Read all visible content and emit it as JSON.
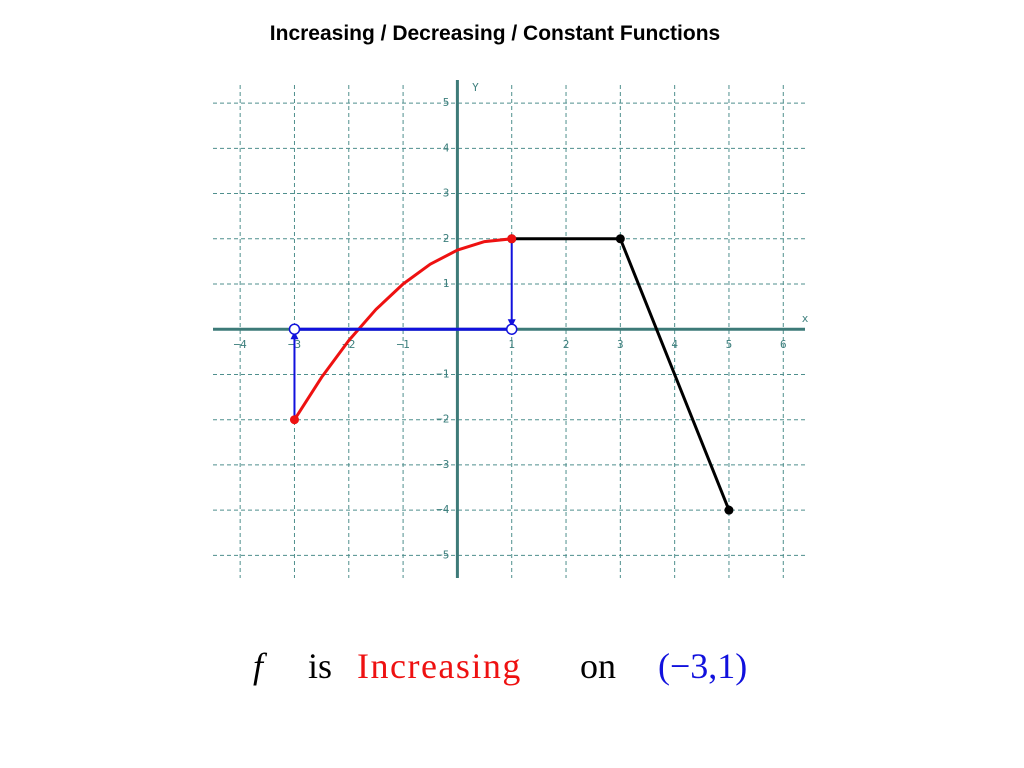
{
  "chart_data": {
    "type": "line",
    "title": "Increasing / Decreasing / Constant Functions",
    "x_label": "x",
    "y_label": "Y",
    "xlim": [
      -4.5,
      6.4
    ],
    "ylim": [
      -5.5,
      5.4
    ],
    "xticks": [
      {
        "value": -4,
        "label": "−4"
      },
      {
        "value": -3,
        "label": "−3"
      },
      {
        "value": -2,
        "label": "−2"
      },
      {
        "value": -1,
        "label": "−1"
      },
      1,
      2,
      3,
      4,
      5,
      6
    ],
    "yticks": [
      {
        "value": -5,
        "label": "−5"
      },
      {
        "value": -4,
        "label": "−4"
      },
      {
        "value": -3,
        "label": "−3"
      },
      {
        "value": -2,
        "label": "−2"
      },
      {
        "value": -1,
        "label": "−1"
      },
      1,
      2,
      3,
      4,
      5
    ],
    "grid": true,
    "series": [
      {
        "color": "#000000",
        "marker": "all",
        "x": [
          1,
          3,
          5
        ],
        "values": [
          2,
          2,
          -4
        ]
      },
      {
        "color": "#ee1111",
        "marker": "ends",
        "x": [
          -3,
          -2.5,
          -2,
          -1.5,
          -1,
          -0.5,
          0,
          0.5,
          1
        ],
        "values": [
          -2,
          -1.0625,
          -0.25,
          0.4375,
          1,
          1.4375,
          1.75,
          1.9375,
          2
        ]
      },
      {
        "color": "#1111dd",
        "marker": "open-ends",
        "x": [
          -3,
          1
        ],
        "values": [
          0,
          0
        ]
      }
    ],
    "arrows": [
      {
        "color": "#1111dd",
        "x": -3,
        "from": -2,
        "to": 0
      },
      {
        "color": "#1111dd",
        "x": 1,
        "from": 2,
        "to": 0
      }
    ],
    "caption": [
      {
        "text": "f",
        "color": "#000000"
      },
      {
        "text": "is",
        "color": "#000000"
      },
      {
        "text": "Increasing",
        "color": "#ee1111"
      },
      {
        "text": "on",
        "color": "#000000"
      },
      {
        "text": "(−3,1)",
        "color": "#1111dd"
      }
    ]
  }
}
